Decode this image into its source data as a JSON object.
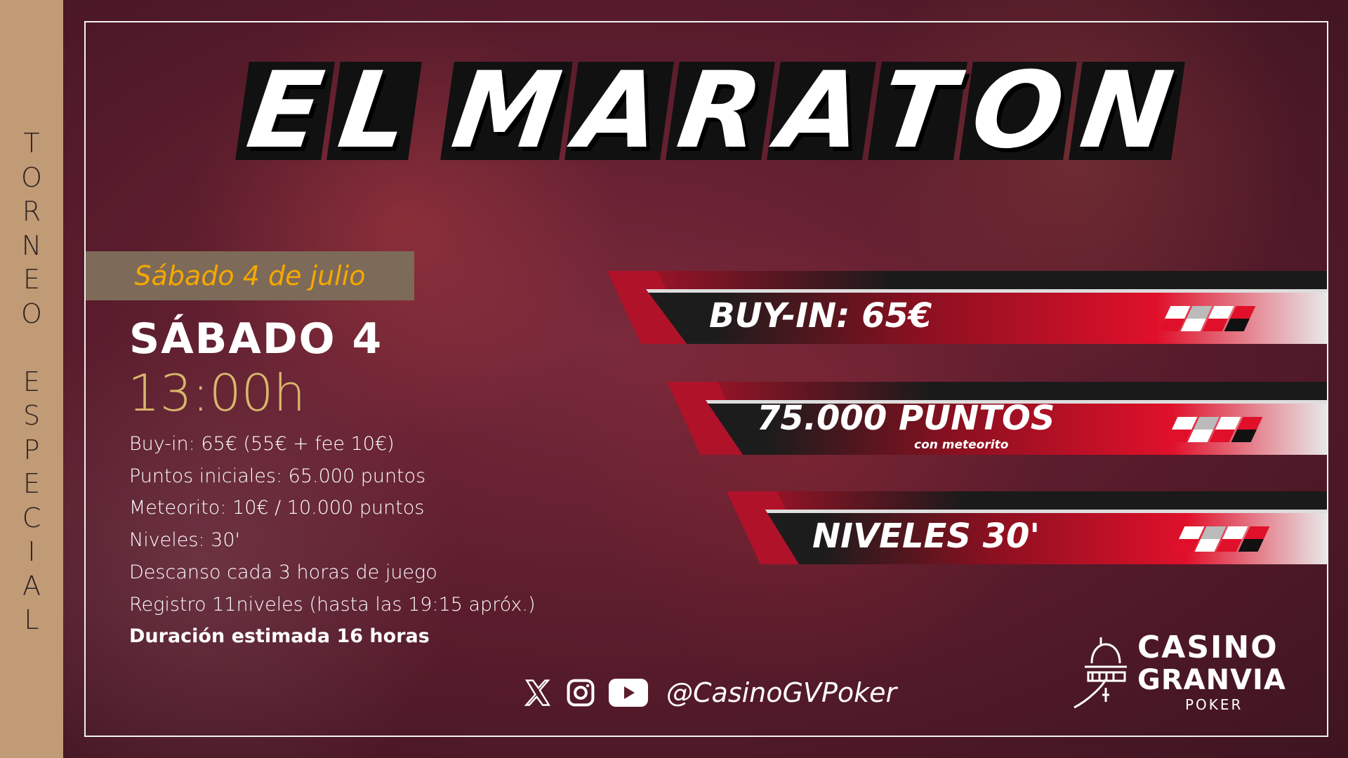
{
  "side_label": "TORNEO ESPECIAL",
  "title_words": [
    "EL",
    "MARATON"
  ],
  "date_banner": "Sábado 4 de julio",
  "day": "SÁBADO 4",
  "time": "13:00h",
  "info": [
    "Buy-in: 65€ (55€ + fee 10€)",
    "Puntos iniciales: 65.000 puntos",
    "Meteorito: 10€ / 10.000 puntos",
    "Niveles: 30'",
    "Descanso cada 3 horas de juego",
    "Registro 11niveles (hasta las 19:15 apróx.)"
  ],
  "info_bold": "Duración estimada 16 horas",
  "ribbons": [
    {
      "label": "BUY-IN: 65€"
    },
    {
      "label": "75.000 PUNTOS",
      "sub": "con meteorito"
    },
    {
      "label": "NIVELES 30'"
    }
  ],
  "social": {
    "icons": [
      "x-icon",
      "instagram-icon",
      "youtube-icon"
    ],
    "handle": "@CasinoGVPoker"
  },
  "logo": {
    "line1": "CASINO",
    "line2": "GRANVIA",
    "line3": "POKER"
  },
  "colors": {
    "strip": "#c19a76",
    "accent_orange": "#f5a800",
    "time_gold": "#d9b66a",
    "ribbon_red": "#e0102a"
  }
}
